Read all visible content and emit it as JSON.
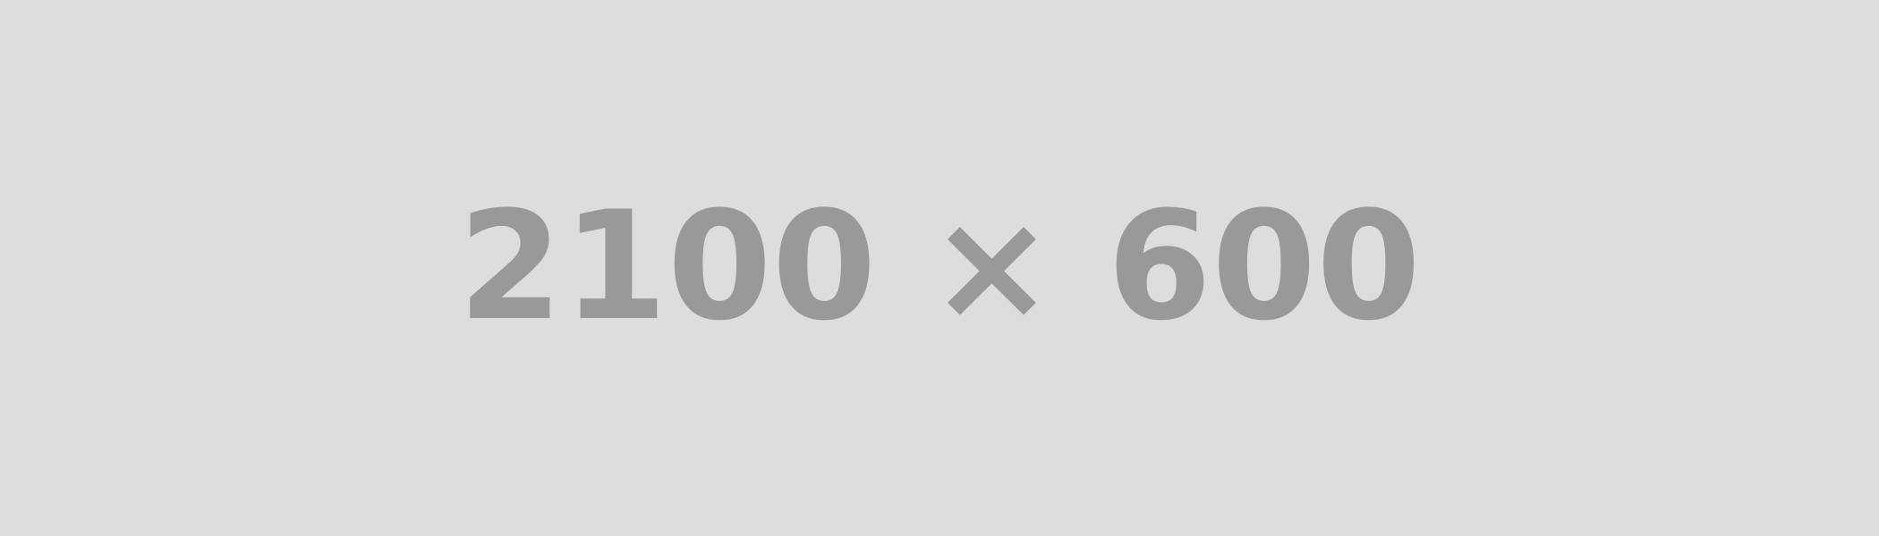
{
  "placeholder": {
    "label": "2100 × 600",
    "background_color": "#dddddd",
    "text_color": "#999999"
  }
}
